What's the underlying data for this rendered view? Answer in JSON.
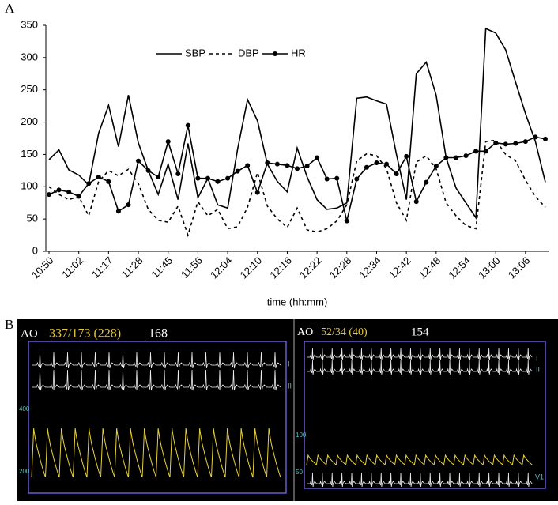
{
  "panel_labels": {
    "a": "A",
    "b": "B"
  },
  "chart_data": {
    "type": "line",
    "x_label": "time  (hh:mm)",
    "categories": [
      "10:50",
      null,
      null,
      "11:02",
      null,
      null,
      "11:17",
      null,
      null,
      "11:28",
      null,
      null,
      "11:45",
      null,
      null,
      "11:56",
      null,
      null,
      "12:04",
      null,
      null,
      "12:10",
      null,
      null,
      "12:16",
      null,
      null,
      "12:22",
      null,
      null,
      "12:28",
      null,
      null,
      "12:34",
      null,
      null,
      "12:42",
      null,
      null,
      "12:48",
      null,
      null,
      "12:54",
      null,
      null,
      "13:00",
      null,
      null,
      "13:06",
      null,
      null
    ],
    "series": [
      {
        "name": "SBP",
        "color": "#000000",
        "dash": "none",
        "marker": false,
        "values": [
          142,
          157,
          126,
          118,
          103,
          183,
          226,
          162,
          242,
          168,
          125,
          88,
          135,
          80,
          167,
          83,
          113,
          72,
          67,
          158,
          235,
          202,
          135,
          108,
          92,
          160,
          115,
          80,
          65,
          67,
          75,
          237,
          239,
          233,
          228,
          150,
          80,
          275,
          293,
          242,
          145,
          98,
          75,
          52,
          345,
          338,
          312,
          262,
          213,
          170,
          107
        ]
      },
      {
        "name": "DBP",
        "color": "#000000",
        "dash": "4 4",
        "marker": false,
        "values": [
          100,
          88,
          80,
          85,
          55,
          108,
          125,
          117,
          127,
          105,
          65,
          48,
          45,
          70,
          25,
          77,
          55,
          65,
          35,
          38,
          68,
          122,
          70,
          50,
          37,
          67,
          33,
          30,
          35,
          47,
          72,
          140,
          151,
          148,
          128,
          75,
          48,
          138,
          148,
          128,
          75,
          55,
          40,
          35,
          170,
          172,
          150,
          140,
          110,
          85,
          68
        ]
      },
      {
        "name": "HR",
        "color": "#000000",
        "dash": "none",
        "marker": true,
        "values": [
          88,
          95,
          92,
          85,
          105,
          115,
          108,
          62,
          72,
          140,
          125,
          115,
          170,
          120,
          195,
          113,
          113,
          108,
          113,
          124,
          133,
          91,
          137,
          135,
          133,
          128,
          132,
          145,
          112,
          113,
          47,
          112,
          130,
          137,
          135,
          120,
          147,
          77,
          107,
          132,
          145,
          145,
          148,
          155,
          155,
          168,
          166,
          167,
          170,
          177,
          174
        ]
      }
    ],
    "ylim": [
      0,
      350
    ],
    "yticks": [
      0,
      50,
      100,
      150,
      200,
      250,
      300,
      350
    ],
    "grid": false,
    "legend": "top"
  },
  "monitor": {
    "left": {
      "site": "AO",
      "pressure": "337/173 (228)",
      "rate": "168",
      "lead1": "I",
      "lead2": "II",
      "scale_high": "400",
      "scale_low": "200"
    },
    "right": {
      "site": "AO",
      "pressure": "52/34 (40)",
      "rate": "154",
      "lead1": "I",
      "lead2": "II",
      "scale_high": "100",
      "scale_low": "50",
      "lead3": "V1"
    }
  }
}
